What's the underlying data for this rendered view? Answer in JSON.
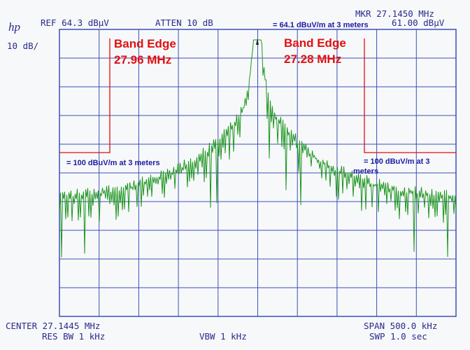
{
  "header": {
    "logo": "hp",
    "reference": "REF 64.3 dBµV",
    "attenuation": "ATTEN 10 dB",
    "marker": "MKR 27.1450 MHz",
    "marker_note": "= 64.1 dBuV/m at 3 meters",
    "marker_level": "61.00 dBµV",
    "scale": "10 dB/"
  },
  "annotations": [
    {
      "title": "Band Edge",
      "frequency": "27.96 MHz",
      "limit": [
        "= 100 dBuV/m at 3 meters"
      ]
    },
    {
      "title": "Band Edge",
      "frequency": "27.28 MHz",
      "limit": [
        "= 100 dBuV/m at 3",
        "meters"
      ]
    }
  ],
  "footer": {
    "center": "CENTER 27.1445 MHz",
    "span": "SPAN 500.0 kHz",
    "res_bw": "RES BW 1 kHz",
    "vbw": "VBW 1 kHz",
    "sweep": "SWP 1.0  sec"
  }
}
